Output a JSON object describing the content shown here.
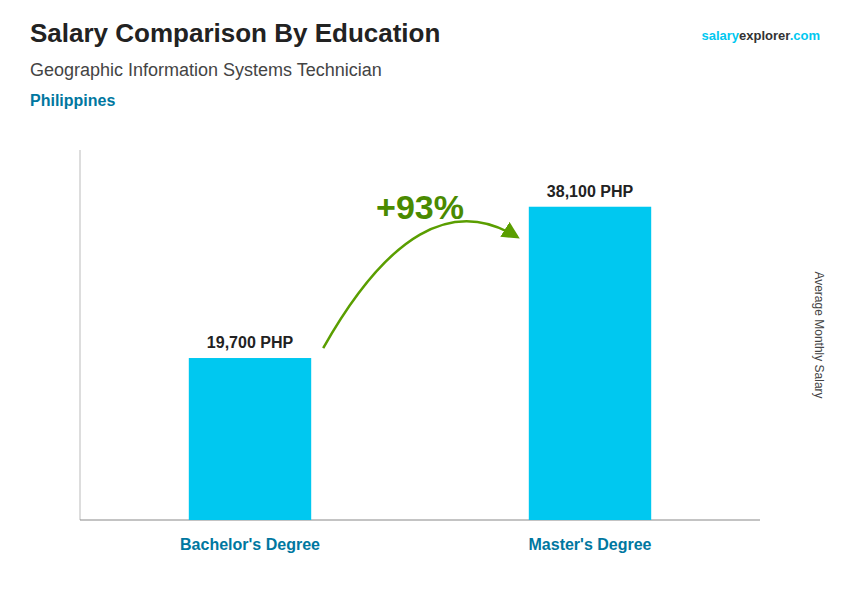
{
  "chart_data": {
    "type": "bar",
    "title": "Salary Comparison By Education",
    "subtitle": "Geographic Information Systems Technician",
    "y_label": "Average Monthly Salary",
    "annotations": [
      "Philippines",
      "+93%",
      "salary",
      "explorer",
      ".com"
    ],
    "categories": [
      "Bachelor's Degree",
      "Master's Degree"
    ],
    "values": [
      19700,
      38100
    ],
    "value_labels": [
      "19,700 PHP",
      "38,100 PHP"
    ],
    "data_labels": true,
    "tick_labels": false,
    "grid": false,
    "color": "#00C8F0",
    "ylim": [
      0,
      45000
    ]
  }
}
